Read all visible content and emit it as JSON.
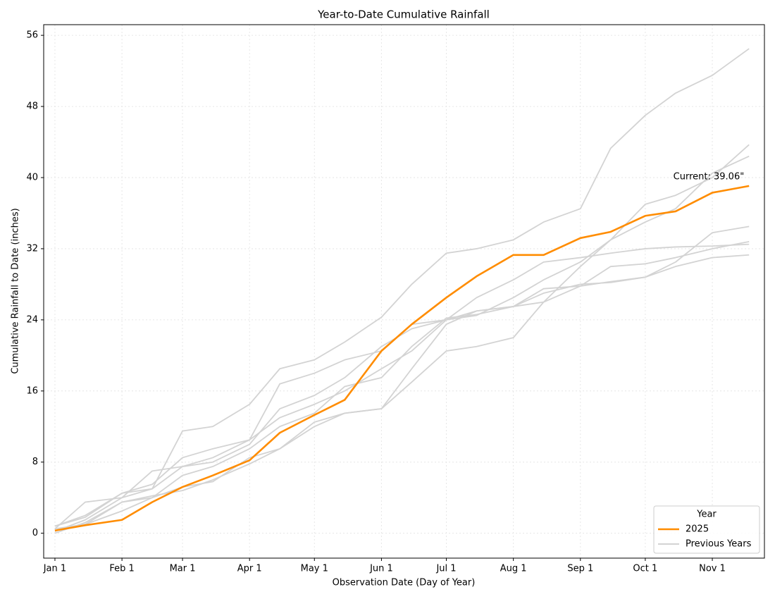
{
  "chart_data": {
    "type": "line",
    "title": "Year-to-Date Cumulative Rainfall",
    "x_label": "Observation Date (Day of Year)",
    "y_label": "Cumulative Rainfall to Date (inches)",
    "annotation": "Current: 39.06\"",
    "legend_title": "Year",
    "legend_position": "lower right",
    "grid": true,
    "x": [
      1,
      15,
      32,
      46,
      60,
      74,
      91,
      105,
      121,
      135,
      152,
      166,
      182,
      196,
      213,
      227,
      244,
      258,
      274,
      288,
      305,
      322
    ],
    "xlim": [
      -4.2,
      329.1
    ],
    "xticks": [
      {
        "value": 1,
        "label": "Jan 1"
      },
      {
        "value": 32,
        "label": "Feb 1"
      },
      {
        "value": 60,
        "label": "Mar 1"
      },
      {
        "value": 91,
        "label": "Apr 1"
      },
      {
        "value": 121,
        "label": "May 1"
      },
      {
        "value": 152,
        "label": "Jun 1"
      },
      {
        "value": 182,
        "label": "Jul 1"
      },
      {
        "value": 213,
        "label": "Aug 1"
      },
      {
        "value": 244,
        "label": "Sep 1"
      },
      {
        "value": 274,
        "label": "Oct 1"
      },
      {
        "value": 305,
        "label": "Nov 1"
      }
    ],
    "ylim": [
      -2.8,
      57.2
    ],
    "yticks": [
      0,
      8,
      16,
      24,
      32,
      40,
      48,
      56
    ],
    "series": [
      {
        "name": "Previous Years",
        "color": "#d3d3d3",
        "values": [
          0.5,
          3.5,
          4.0,
          5.0,
          11.5,
          12.0,
          14.5,
          18.5,
          19.5,
          21.5,
          24.3,
          28,
          31.5,
          32,
          33,
          35,
          36.5,
          43.3,
          47,
          49.5,
          51.5,
          54.5
        ]
      },
      {
        "name": "Previous Years",
        "color": "#d3d3d3",
        "values": [
          0.8,
          2.0,
          4.5,
          5.5,
          8.5,
          9.5,
          10.5,
          16.8,
          18,
          19.5,
          20.5,
          23.5,
          24,
          25,
          25.5,
          26,
          30,
          33,
          37,
          38,
          40,
          43.7
        ]
      },
      {
        "name": "Previous Years",
        "color": "#d3d3d3",
        "values": [
          0.2,
          1.5,
          4.0,
          7.0,
          7.5,
          8.0,
          10.0,
          14.0,
          15.5,
          17.5,
          21.0,
          23.0,
          24.0,
          24.5,
          26.5,
          28.5,
          30.5,
          33.0,
          35.0,
          36.5,
          40.5,
          42.4
        ]
      },
      {
        "name": "Previous Years",
        "color": "#d3d3d3",
        "values": [
          0.5,
          1.0,
          2.5,
          4.0,
          6.5,
          7.5,
          9.5,
          12.0,
          13.5,
          16.5,
          17.5,
          21.0,
          24.2,
          24.6,
          25.5,
          27.0,
          28.0,
          28.2,
          28.8,
          30.5,
          33.8,
          34.5
        ]
      },
      {
        "name": "Previous Years",
        "color": "#d3d3d3",
        "values": [
          0,
          1.2,
          3.5,
          4.2,
          4.8,
          6.0,
          7.8,
          9.5,
          12.0,
          13.5,
          14.0,
          17.0,
          20.5,
          21.0,
          22.0,
          26.0,
          27.8,
          30.0,
          30.3,
          31.0,
          32.0,
          32.8
        ]
      },
      {
        "name": "Previous Years",
        "color": "#d3d3d3",
        "values": [
          0.8,
          1.8,
          4.5,
          5.0,
          7.5,
          8.5,
          10.5,
          13.0,
          14.5,
          16.0,
          18.5,
          20.5,
          24.0,
          26.5,
          28.5,
          30.5,
          31.0,
          31.5,
          32.0,
          32.2,
          32.3,
          32.5
        ]
      },
      {
        "name": "Previous Years",
        "color": "#d3d3d3",
        "values": [
          0.3,
          1.0,
          3.5,
          4.0,
          5.2,
          5.8,
          8.5,
          9.5,
          12.5,
          13.5,
          14.0,
          18.5,
          23.5,
          25.0,
          25.5,
          27.5,
          27.8,
          28.3,
          28.8,
          30.0,
          31.0,
          31.3
        ]
      },
      {
        "name": "2025",
        "color": "#ff8c00",
        "values": [
          0.3,
          0.9,
          1.5,
          3.5,
          5.2,
          6.5,
          8.2,
          11.3,
          13.3,
          15.0,
          20.5,
          23.5,
          26.5,
          28.9,
          31.3,
          31.3,
          33.2,
          33.9,
          35.7,
          36.2,
          38.3,
          39.06
        ]
      }
    ]
  }
}
